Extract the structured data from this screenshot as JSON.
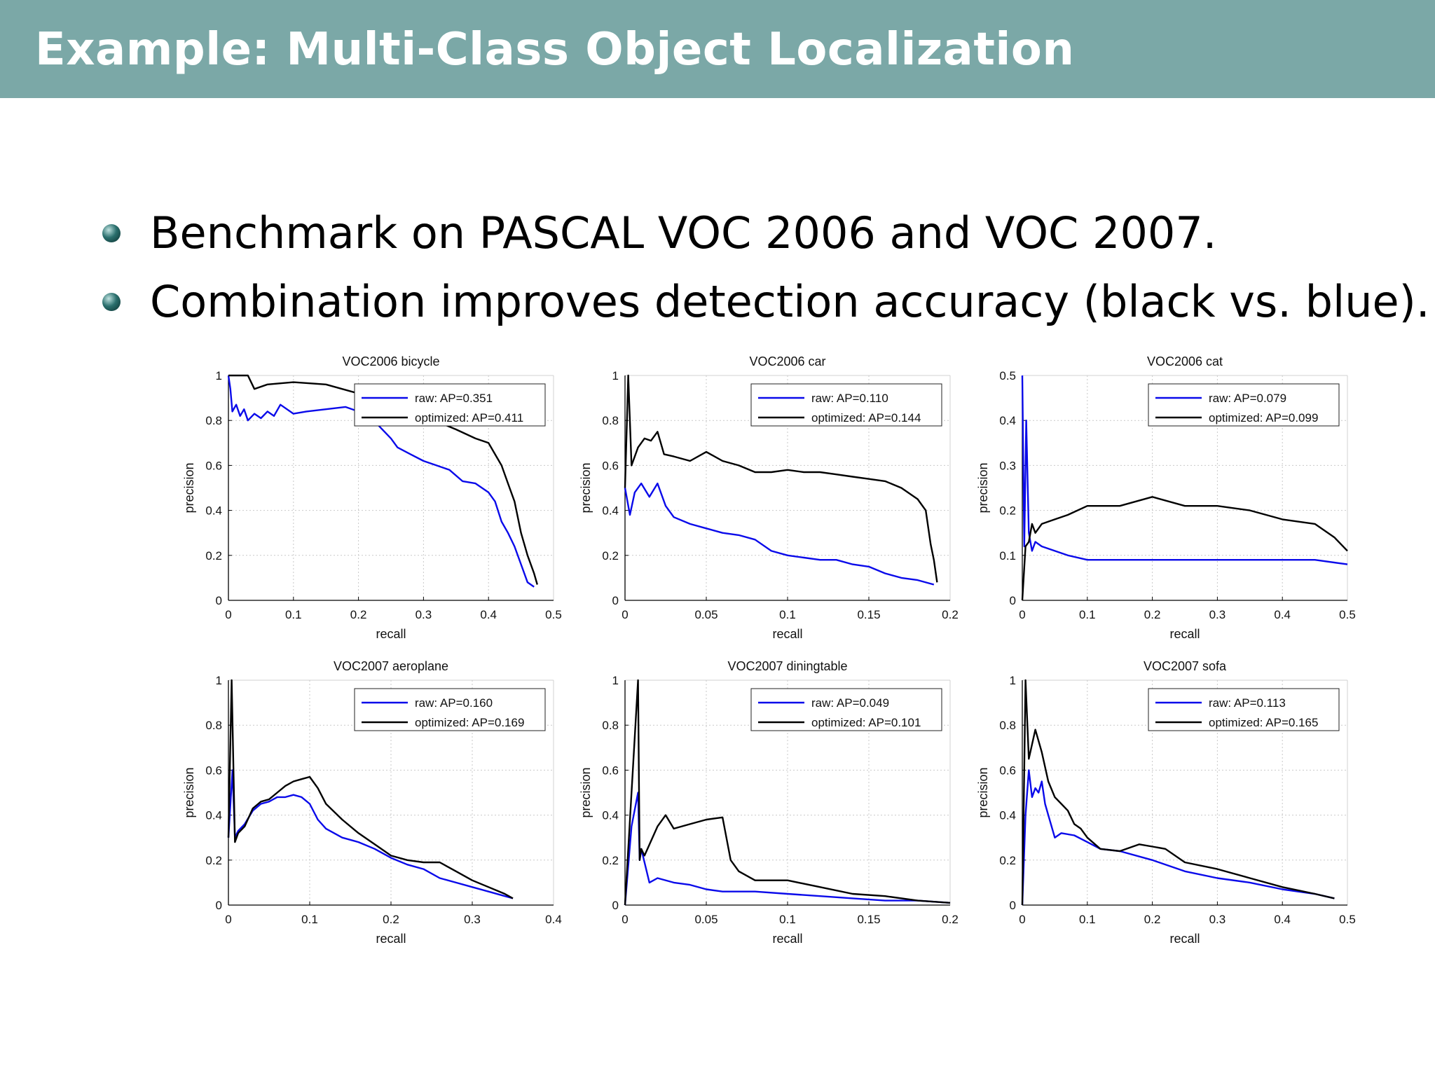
{
  "slide": {
    "title": "Example: Multi-Class Object Localization",
    "bullets": [
      "Benchmark on PASCAL VOC 2006 and VOC 2007.",
      "Combination improves detection accuracy (black vs. blue)."
    ]
  },
  "colors": {
    "header": "#7ba8a7",
    "raw": "#0a0aea",
    "optimized": "#000000"
  },
  "chart_data": [
    {
      "type": "line",
      "title": "VOC2006 bicycle",
      "xlabel": "recall",
      "ylabel": "precision",
      "xlim": [
        0,
        0.5
      ],
      "ylim": [
        0,
        1
      ],
      "xticks": [
        "0",
        "0.1",
        "0.2",
        "0.3",
        "0.4",
        "0.5"
      ],
      "yticks": [
        "0",
        "0.2",
        "0.4",
        "0.6",
        "0.8",
        "1"
      ],
      "grid": true,
      "legend": "top-right",
      "series": [
        {
          "name": "raw: AP=0.351",
          "color": "#0a0aea",
          "x": [
            0,
            0.003,
            0.006,
            0.012,
            0.018,
            0.024,
            0.03,
            0.04,
            0.05,
            0.06,
            0.07,
            0.08,
            0.1,
            0.12,
            0.15,
            0.18,
            0.2,
            0.23,
            0.25,
            0.26,
            0.28,
            0.3,
            0.32,
            0.34,
            0.36,
            0.38,
            0.4,
            0.41,
            0.42,
            0.43,
            0.44,
            0.45,
            0.46,
            0.47
          ],
          "y": [
            1,
            0.94,
            0.84,
            0.87,
            0.82,
            0.85,
            0.8,
            0.83,
            0.81,
            0.84,
            0.82,
            0.87,
            0.83,
            0.84,
            0.85,
            0.86,
            0.84,
            0.78,
            0.72,
            0.68,
            0.65,
            0.62,
            0.6,
            0.58,
            0.53,
            0.52,
            0.48,
            0.44,
            0.35,
            0.3,
            0.24,
            0.16,
            0.08,
            0.06
          ]
        },
        {
          "name": "optimized: AP=0.411",
          "color": "#000000",
          "x": [
            0,
            0.03,
            0.04,
            0.06,
            0.1,
            0.15,
            0.2,
            0.25,
            0.3,
            0.35,
            0.38,
            0.4,
            0.41,
            0.42,
            0.43,
            0.44,
            0.45,
            0.46,
            0.47,
            0.475
          ],
          "y": [
            1,
            1,
            0.94,
            0.96,
            0.97,
            0.96,
            0.92,
            0.88,
            0.82,
            0.76,
            0.72,
            0.7,
            0.65,
            0.6,
            0.52,
            0.44,
            0.3,
            0.2,
            0.12,
            0.07
          ]
        }
      ]
    },
    {
      "type": "line",
      "title": "VOC2006 car",
      "xlabel": "recall",
      "ylabel": "precision",
      "xlim": [
        0,
        0.2
      ],
      "ylim": [
        0,
        1
      ],
      "xticks": [
        "0",
        "0.05",
        "0.1",
        "0.15",
        "0.2"
      ],
      "yticks": [
        "0",
        "0.2",
        "0.4",
        "0.6",
        "0.8",
        "1"
      ],
      "grid": true,
      "legend": "top-right",
      "series": [
        {
          "name": "raw: AP=0.110",
          "color": "#0a0aea",
          "x": [
            0,
            0.003,
            0.006,
            0.01,
            0.015,
            0.02,
            0.025,
            0.03,
            0.04,
            0.05,
            0.06,
            0.07,
            0.08,
            0.09,
            0.1,
            0.11,
            0.12,
            0.13,
            0.14,
            0.15,
            0.16,
            0.17,
            0.18,
            0.19
          ],
          "y": [
            0.5,
            0.38,
            0.48,
            0.52,
            0.46,
            0.52,
            0.42,
            0.37,
            0.34,
            0.32,
            0.3,
            0.29,
            0.27,
            0.22,
            0.2,
            0.19,
            0.18,
            0.18,
            0.16,
            0.15,
            0.12,
            0.1,
            0.09,
            0.07
          ]
        },
        {
          "name": "optimized: AP=0.144",
          "color": "#000000",
          "x": [
            0,
            0.002,
            0.004,
            0.008,
            0.012,
            0.016,
            0.02,
            0.024,
            0.03,
            0.04,
            0.05,
            0.06,
            0.07,
            0.08,
            0.09,
            0.1,
            0.11,
            0.12,
            0.13,
            0.14,
            0.15,
            0.16,
            0.17,
            0.18,
            0.185,
            0.188,
            0.19,
            0.192
          ],
          "y": [
            0.5,
            1,
            0.6,
            0.68,
            0.72,
            0.71,
            0.75,
            0.65,
            0.64,
            0.62,
            0.66,
            0.62,
            0.6,
            0.57,
            0.57,
            0.58,
            0.57,
            0.57,
            0.56,
            0.55,
            0.54,
            0.53,
            0.5,
            0.45,
            0.4,
            0.25,
            0.18,
            0.08
          ]
        }
      ]
    },
    {
      "type": "line",
      "title": "VOC2006 cat",
      "xlabel": "recall",
      "ylabel": "precision",
      "xlim": [
        0,
        0.5
      ],
      "ylim": [
        0,
        0.5
      ],
      "xticks": [
        "0",
        "0.1",
        "0.2",
        "0.3",
        "0.4",
        "0.5"
      ],
      "yticks": [
        "0",
        "0.1",
        "0.2",
        "0.3",
        "0.4",
        "0.5"
      ],
      "grid": true,
      "legend": "top-right",
      "series": [
        {
          "name": "raw: AP=0.079",
          "color": "#0a0aea",
          "x": [
            0,
            0.003,
            0.006,
            0.01,
            0.015,
            0.02,
            0.03,
            0.05,
            0.07,
            0.1,
            0.15,
            0.2,
            0.25,
            0.3,
            0.35,
            0.4,
            0.45,
            0.5
          ],
          "y": [
            0.5,
            0.12,
            0.4,
            0.15,
            0.11,
            0.13,
            0.12,
            0.11,
            0.1,
            0.09,
            0.09,
            0.09,
            0.09,
            0.09,
            0.09,
            0.09,
            0.09,
            0.08
          ]
        },
        {
          "name": "optimized: AP=0.099",
          "color": "#000000",
          "x": [
            0,
            0.005,
            0.01,
            0.015,
            0.02,
            0.03,
            0.05,
            0.07,
            0.1,
            0.15,
            0.2,
            0.25,
            0.3,
            0.35,
            0.4,
            0.45,
            0.48,
            0.5
          ],
          "y": [
            0.0,
            0.12,
            0.13,
            0.17,
            0.15,
            0.17,
            0.18,
            0.19,
            0.21,
            0.21,
            0.23,
            0.21,
            0.21,
            0.2,
            0.18,
            0.17,
            0.14,
            0.11
          ]
        }
      ]
    },
    {
      "type": "line",
      "title": "VOC2007 aeroplane",
      "xlabel": "recall",
      "ylabel": "precision",
      "xlim": [
        0,
        0.4
      ],
      "ylim": [
        0,
        1
      ],
      "xticks": [
        "0",
        "0.1",
        "0.2",
        "0.3",
        "0.4"
      ],
      "yticks": [
        "0",
        "0.2",
        "0.4",
        "0.6",
        "0.8",
        "1"
      ],
      "grid": true,
      "legend": "top-right",
      "series": [
        {
          "name": "raw: AP=0.160",
          "color": "#0a0aea",
          "x": [
            0,
            0.005,
            0.008,
            0.012,
            0.02,
            0.03,
            0.04,
            0.05,
            0.06,
            0.07,
            0.08,
            0.09,
            0.1,
            0.11,
            0.12,
            0.14,
            0.16,
            0.18,
            0.2,
            0.22,
            0.24,
            0.26,
            0.28,
            0.3,
            0.32,
            0.34,
            0.35
          ],
          "y": [
            0.3,
            0.6,
            0.3,
            0.33,
            0.36,
            0.42,
            0.45,
            0.46,
            0.48,
            0.48,
            0.49,
            0.48,
            0.45,
            0.38,
            0.34,
            0.3,
            0.28,
            0.25,
            0.21,
            0.18,
            0.16,
            0.12,
            0.1,
            0.08,
            0.06,
            0.04,
            0.03
          ]
        },
        {
          "name": "optimized: AP=0.169",
          "color": "#000000",
          "x": [
            0,
            0.004,
            0.008,
            0.012,
            0.02,
            0.03,
            0.04,
            0.05,
            0.06,
            0.07,
            0.08,
            0.09,
            0.1,
            0.11,
            0.12,
            0.14,
            0.16,
            0.18,
            0.2,
            0.22,
            0.24,
            0.26,
            0.28,
            0.3,
            0.32,
            0.34,
            0.35
          ],
          "y": [
            0.3,
            1,
            0.28,
            0.32,
            0.35,
            0.43,
            0.46,
            0.47,
            0.5,
            0.53,
            0.55,
            0.56,
            0.57,
            0.52,
            0.45,
            0.38,
            0.32,
            0.27,
            0.22,
            0.2,
            0.19,
            0.19,
            0.15,
            0.11,
            0.08,
            0.05,
            0.03
          ]
        }
      ]
    },
    {
      "type": "line",
      "title": "VOC2007 diningtable",
      "xlabel": "recall",
      "ylabel": "precision",
      "xlim": [
        0,
        0.2
      ],
      "ylim": [
        0,
        1
      ],
      "xticks": [
        "0",
        "0.05",
        "0.1",
        "0.15",
        "0.2"
      ],
      "yticks": [
        "0",
        "0.2",
        "0.4",
        "0.6",
        "0.8",
        "1"
      ],
      "grid": true,
      "legend": "top-right",
      "series": [
        {
          "name": "raw: AP=0.049",
          "color": "#0a0aea",
          "x": [
            0,
            0.004,
            0.008,
            0.009,
            0.01,
            0.015,
            0.02,
            0.03,
            0.04,
            0.05,
            0.06,
            0.08,
            0.1,
            0.12,
            0.14,
            0.16,
            0.18,
            0.2
          ],
          "y": [
            0.0,
            0.35,
            0.5,
            0.2,
            0.25,
            0.1,
            0.12,
            0.1,
            0.09,
            0.07,
            0.06,
            0.06,
            0.05,
            0.04,
            0.03,
            0.02,
            0.02,
            0.01
          ]
        },
        {
          "name": "optimized: AP=0.101",
          "color": "#000000",
          "x": [
            0,
            0.008,
            0.009,
            0.01,
            0.012,
            0.02,
            0.025,
            0.03,
            0.04,
            0.05,
            0.06,
            0.065,
            0.07,
            0.08,
            0.1,
            0.12,
            0.14,
            0.16,
            0.18,
            0.2
          ],
          "y": [
            0.0,
            1,
            0.2,
            0.25,
            0.22,
            0.35,
            0.4,
            0.34,
            0.36,
            0.38,
            0.39,
            0.2,
            0.15,
            0.11,
            0.11,
            0.08,
            0.05,
            0.04,
            0.02,
            0.01
          ]
        }
      ]
    },
    {
      "type": "line",
      "title": "VOC2007 sofa",
      "xlabel": "recall",
      "ylabel": "precision",
      "xlim": [
        0,
        0.5
      ],
      "ylim": [
        0,
        1
      ],
      "xticks": [
        "0",
        "0.1",
        "0.2",
        "0.3",
        "0.4",
        "0.5"
      ],
      "yticks": [
        "0",
        "0.2",
        "0.4",
        "0.6",
        "0.8",
        "1"
      ],
      "grid": true,
      "legend": "top-right",
      "series": [
        {
          "name": "raw: AP=0.113",
          "color": "#0a0aea",
          "x": [
            0,
            0.005,
            0.01,
            0.015,
            0.02,
            0.025,
            0.03,
            0.035,
            0.04,
            0.05,
            0.06,
            0.08,
            0.1,
            0.12,
            0.15,
            0.2,
            0.25,
            0.3,
            0.35,
            0.4,
            0.45,
            0.48
          ],
          "y": [
            0.0,
            0.4,
            0.6,
            0.48,
            0.52,
            0.5,
            0.55,
            0.45,
            0.4,
            0.3,
            0.32,
            0.31,
            0.28,
            0.25,
            0.24,
            0.2,
            0.15,
            0.12,
            0.1,
            0.07,
            0.05,
            0.03
          ]
        },
        {
          "name": "optimized: AP=0.165",
          "color": "#000000",
          "x": [
            0,
            0.005,
            0.01,
            0.02,
            0.03,
            0.04,
            0.05,
            0.06,
            0.07,
            0.08,
            0.09,
            0.1,
            0.12,
            0.15,
            0.18,
            0.2,
            0.22,
            0.25,
            0.3,
            0.35,
            0.4,
            0.45,
            0.48
          ],
          "y": [
            0.0,
            1,
            0.65,
            0.78,
            0.68,
            0.55,
            0.48,
            0.45,
            0.42,
            0.36,
            0.34,
            0.3,
            0.25,
            0.24,
            0.27,
            0.26,
            0.25,
            0.19,
            0.16,
            0.12,
            0.08,
            0.05,
            0.03
          ]
        }
      ]
    }
  ]
}
